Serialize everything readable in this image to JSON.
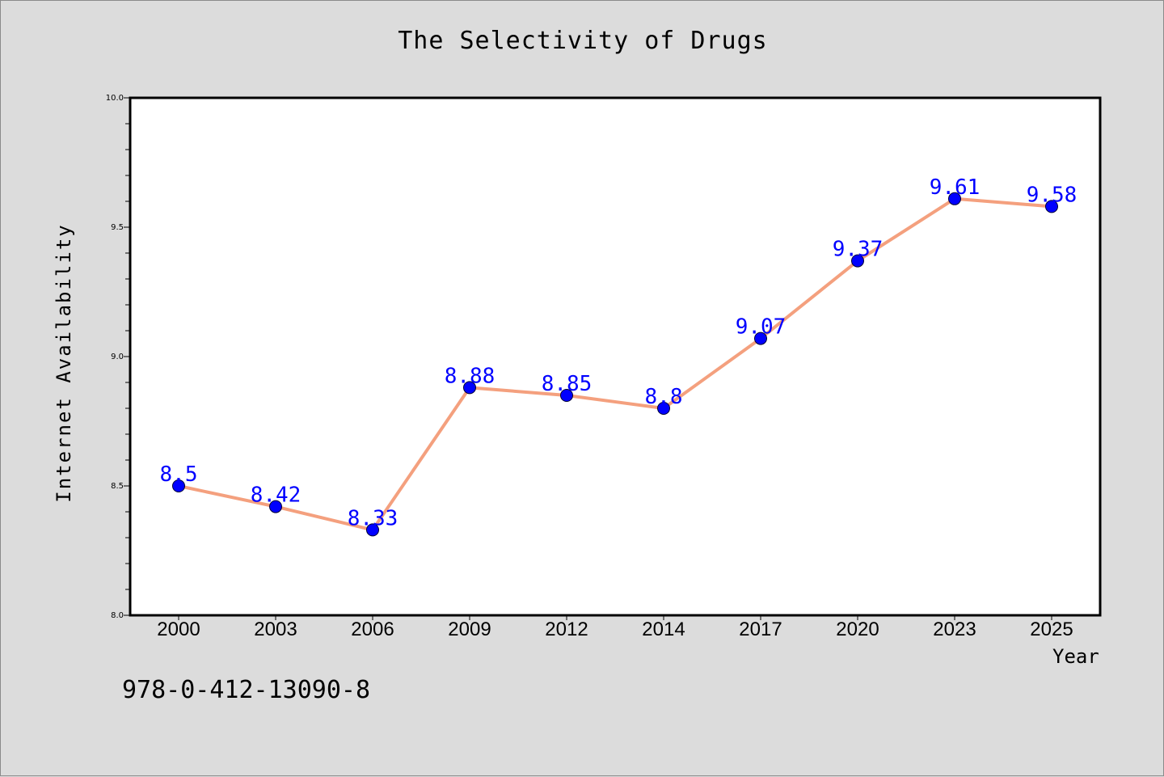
{
  "chart_data": {
    "type": "line",
    "title": "The Selectivity of Drugs",
    "xlabel": "Year",
    "ylabel": "Internet Availability",
    "categories": [
      "2000",
      "2003",
      "2006",
      "2009",
      "2012",
      "2014",
      "2017",
      "2020",
      "2023",
      "2025"
    ],
    "series": [
      {
        "values": [
          8.5,
          8.42,
          8.33,
          8.88,
          8.85,
          8.8,
          9.07,
          9.37,
          9.61,
          9.58
        ],
        "data_labels": [
          "8.5",
          "8.42",
          "8.33",
          "8.88",
          "8.85",
          "8.8",
          "9.07",
          "9.37",
          "9.61",
          "9.58"
        ],
        "line_color": "#f4a07e",
        "marker_color": "#0000ff"
      }
    ],
    "ylim": [
      8.0,
      10.0
    ],
    "y_ticks": [
      "8.0",
      "8.5",
      "9.0",
      "9.5",
      "10.0"
    ],
    "grid": false,
    "legend": "none"
  },
  "annotation": "978-0-412-13090-8",
  "colors": {
    "background": "#dcdcdc",
    "plot_area": "#ffffff",
    "line": "#f4a07e",
    "marker": "#0000ff",
    "data_label": "#0000ff"
  }
}
